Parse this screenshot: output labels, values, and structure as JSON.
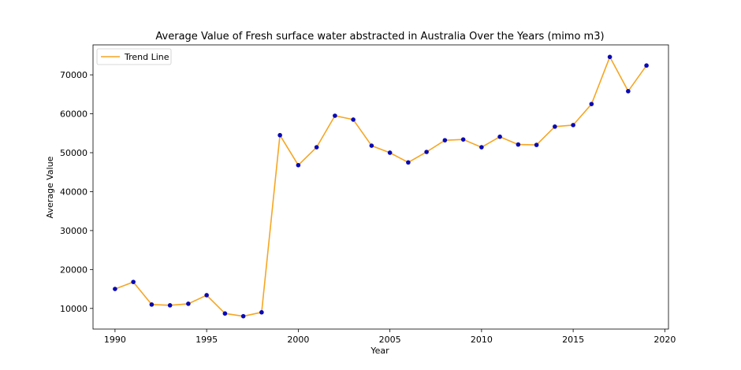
{
  "chart_data": {
    "type": "line",
    "title": "Average Value of Fresh surface water abstracted in Australia Over the Years (mimo m3)",
    "xlabel": "Year",
    "ylabel": "Average Value",
    "xlim": [
      1988.8,
      2020.2
    ],
    "ylim": [
      4700,
      77700
    ],
    "xticks": [
      1990,
      1995,
      2000,
      2005,
      2010,
      2015,
      2020
    ],
    "yticks": [
      10000,
      20000,
      30000,
      40000,
      50000,
      60000,
      70000
    ],
    "legend": {
      "position": "top-left",
      "entries": [
        "Trend Line"
      ]
    },
    "grid": false,
    "line_color": "#f5a623",
    "marker_color": "#0a0ab4",
    "series": [
      {
        "name": "Trend Line",
        "x": [
          1990,
          1991,
          1992,
          1993,
          1994,
          1995,
          1996,
          1997,
          1998,
          1999,
          2000,
          2001,
          2002,
          2003,
          2004,
          2005,
          2006,
          2007,
          2008,
          2009,
          2010,
          2011,
          2012,
          2013,
          2014,
          2015,
          2016,
          2017,
          2018,
          2019
        ],
        "values": [
          15000,
          16800,
          11000,
          10800,
          11200,
          13400,
          8700,
          8000,
          9000,
          54500,
          46800,
          51400,
          59500,
          58500,
          51800,
          50000,
          47500,
          50200,
          53200,
          53400,
          51400,
          54100,
          52100,
          52000,
          56700,
          57100,
          62500,
          74600,
          65800,
          72400
        ]
      }
    ]
  }
}
